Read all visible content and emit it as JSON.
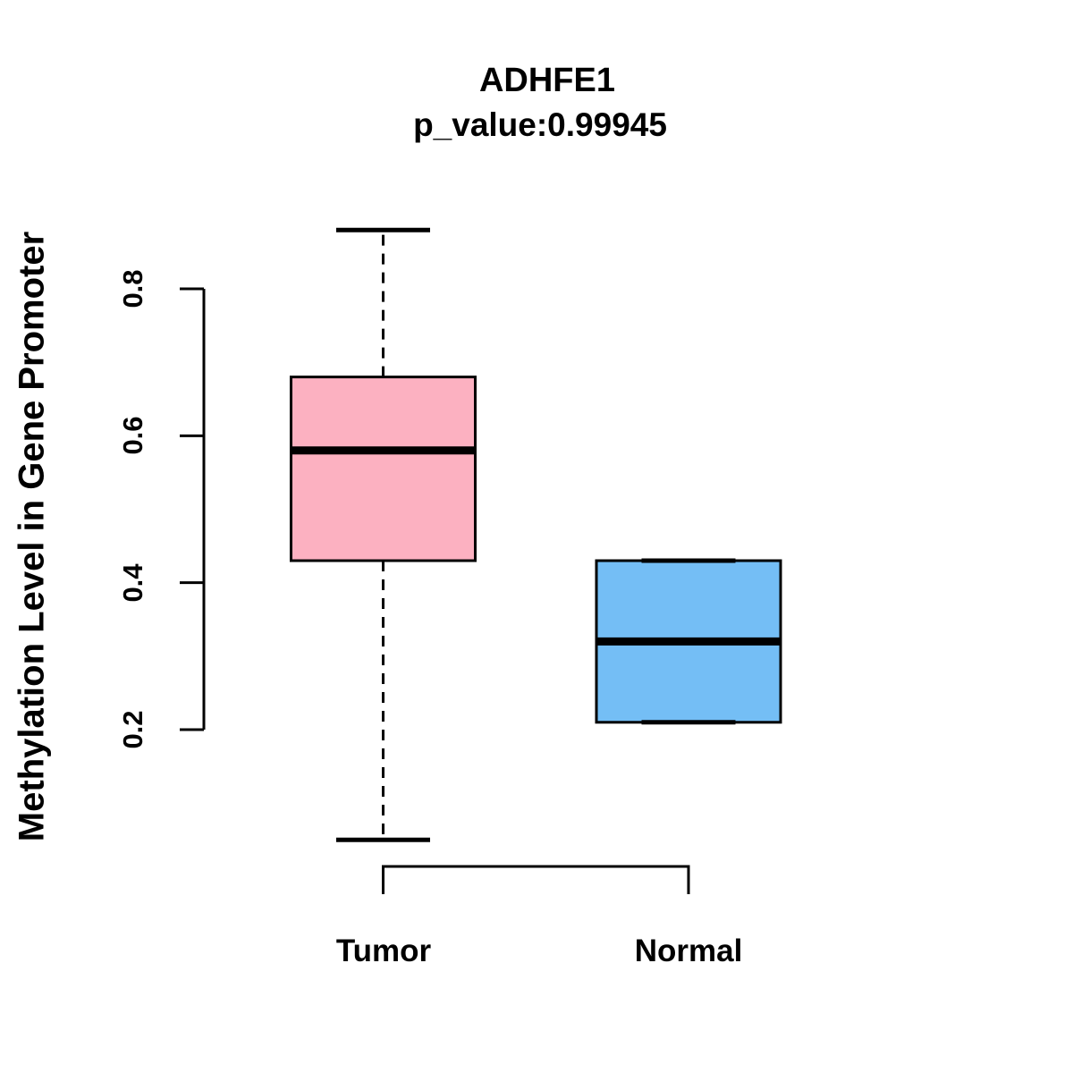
{
  "chart_data": {
    "type": "boxplot",
    "title": "ADHFE1",
    "subtitle": "p_value:0.99945",
    "ylabel": "Methylation Level in Gene Promoter",
    "xlabel": "",
    "y_axis": {
      "ticks": [
        0.2,
        0.4,
        0.6,
        0.8
      ],
      "tick_labels": [
        "0.2",
        "0.4",
        "0.6",
        "0.8"
      ],
      "axis_range": [
        0.2,
        0.8
      ]
    },
    "groups": [
      {
        "label": "Tumor",
        "color": "#fcb1c1",
        "whisker_low": 0.05,
        "q1": 0.43,
        "median": 0.58,
        "q3": 0.68,
        "whisker_high": 0.88,
        "whisker_style": "dashed"
      },
      {
        "label": "Normal",
        "color": "#74bef5",
        "whisker_low": 0.21,
        "q1": 0.21,
        "median": 0.32,
        "q3": 0.43,
        "whisker_high": 0.43,
        "whisker_style": "none"
      }
    ],
    "layout_hints": {
      "grid": "off",
      "legend": "none",
      "box_border_color": "#000000",
      "text_color": "#000000",
      "background": "#ffffff"
    }
  }
}
